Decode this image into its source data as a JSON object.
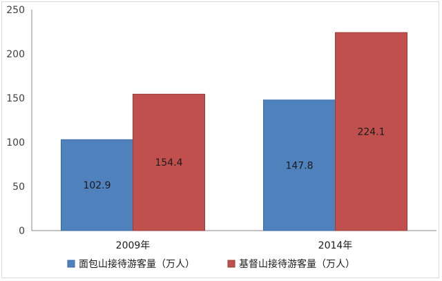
{
  "chart_data": {
    "type": "bar",
    "title": "",
    "xlabel": "",
    "ylabel": "",
    "categories": [
      "2009年",
      "2014年"
    ],
    "ylim": [
      0,
      250
    ],
    "yticks": [
      0,
      50,
      100,
      150,
      200,
      250
    ],
    "grid": false,
    "legend_position": "bottom",
    "series": [
      {
        "name": "面包山接待游客量（万人）",
        "values": [
          102.9,
          147.8
        ],
        "color": "#4f81bd",
        "edge": "#3a6aa3"
      },
      {
        "name": "基督山接待游客量（万人）",
        "values": [
          154.4,
          224.1
        ],
        "color": "#c0504d",
        "edge": "#9b3b38"
      }
    ],
    "data_labels": [
      "102.9",
      "147.8",
      "154.4",
      "224.1"
    ]
  }
}
